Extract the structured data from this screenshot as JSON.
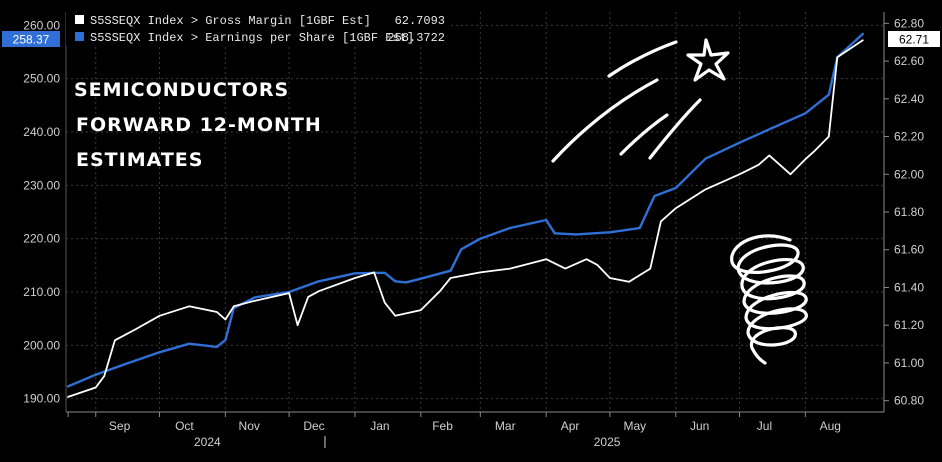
{
  "colors": {
    "background": "#000000",
    "gross_margin": "#ffffff",
    "eps": "#2f6fd6",
    "grid": "#3a3a3a",
    "axis_text": "#cfcfcf"
  },
  "annotation": {
    "lines": [
      "SEMICONDUCTORS",
      "FORWARD 12-MONTH",
      "ESTIMATES"
    ]
  },
  "chart_data": {
    "type": "line",
    "legend": [
      {
        "label": "S5SSEQX Index > Gross Margin [1GBF Est]",
        "value": "62.7093",
        "color": "#ffffff"
      },
      {
        "label": "S5SSEQX Index > Earnings per Share [1GBF Est]",
        "value": "258.3722",
        "color": "#2f6fd6"
      }
    ],
    "y_left": {
      "ticks": [
        "190.00",
        "200.00",
        "210.00",
        "220.00",
        "230.00",
        "240.00",
        "250.00",
        "260.00"
      ],
      "range": [
        187.5,
        262.5
      ],
      "last_label": "258.37"
    },
    "y_right": {
      "ticks": [
        "60.80",
        "61.00",
        "61.20",
        "61.40",
        "61.60",
        "61.80",
        "62.00",
        "62.20",
        "62.40",
        "62.60",
        "62.80"
      ],
      "range": [
        60.74,
        62.86
      ],
      "last_label": "62.71"
    },
    "x_months": [
      "Sep",
      "Oct",
      "Nov",
      "Dec",
      "Jan",
      "Feb",
      "Mar",
      "Apr",
      "May",
      "Jun",
      "Jul",
      "Aug"
    ],
    "x_years": [
      "2024",
      "2025"
    ],
    "grid": true,
    "series": [
      {
        "name": "S5SSEQX Index > Earnings per Share [1GBF Est]",
        "axis": "left",
        "x": [
          "2024-08-19",
          "2024-09-01",
          "2024-09-15",
          "2024-10-01",
          "2024-10-15",
          "2024-10-28",
          "2024-11-01",
          "2024-11-05",
          "2024-11-15",
          "2024-12-01",
          "2024-12-15",
          "2025-01-01",
          "2025-01-15",
          "2025-01-20",
          "2025-01-25",
          "2025-02-01",
          "2025-02-15",
          "2025-02-20",
          "2025-03-01",
          "2025-03-15",
          "2025-04-01",
          "2025-04-05",
          "2025-04-15",
          "2025-05-01",
          "2025-05-15",
          "2025-05-22",
          "2025-06-01",
          "2025-06-15",
          "2025-07-01",
          "2025-07-15",
          "2025-08-01",
          "2025-08-12",
          "2025-08-16",
          "2025-08-28"
        ],
        "values": [
          192.3,
          194.5,
          196.5,
          198.7,
          200.3,
          199.7,
          201.0,
          207.0,
          209.0,
          210.0,
          212.0,
          213.5,
          213.6,
          212.0,
          211.8,
          212.5,
          214.0,
          218.0,
          220.0,
          222.0,
          223.5,
          221.0,
          220.8,
          221.2,
          222.0,
          228.0,
          229.5,
          235.0,
          238.0,
          240.5,
          243.5,
          247.0,
          254.0,
          258.4
        ]
      },
      {
        "name": "S5SSEQX Index > Gross Margin [1GBF Est]",
        "axis": "right",
        "x": [
          "2024-08-19",
          "2024-09-01",
          "2024-09-05",
          "2024-09-10",
          "2024-09-20",
          "2024-10-01",
          "2024-10-15",
          "2024-10-28",
          "2024-11-01",
          "2024-11-05",
          "2024-11-15",
          "2024-12-01",
          "2024-12-05",
          "2024-12-10",
          "2024-12-15",
          "2025-01-01",
          "2025-01-10",
          "2025-01-15",
          "2025-01-20",
          "2025-02-01",
          "2025-02-10",
          "2025-02-15",
          "2025-03-01",
          "2025-03-15",
          "2025-04-01",
          "2025-04-10",
          "2025-04-20",
          "2025-04-25",
          "2025-05-01",
          "2025-05-10",
          "2025-05-20",
          "2025-05-25",
          "2025-06-01",
          "2025-06-15",
          "2025-07-01",
          "2025-07-10",
          "2025-07-15",
          "2025-07-25",
          "2025-08-01",
          "2025-08-05",
          "2025-08-12",
          "2025-08-16",
          "2025-08-28"
        ],
        "values": [
          60.82,
          60.87,
          60.93,
          61.12,
          61.18,
          61.25,
          61.3,
          61.27,
          61.23,
          61.3,
          61.33,
          61.37,
          61.2,
          61.35,
          61.38,
          61.45,
          61.48,
          61.32,
          61.25,
          61.28,
          61.38,
          61.45,
          61.48,
          61.5,
          61.55,
          61.5,
          61.55,
          61.52,
          61.45,
          61.43,
          61.5,
          61.75,
          61.82,
          61.92,
          62.0,
          62.05,
          62.1,
          62.0,
          62.08,
          62.12,
          62.2,
          62.62,
          62.71
        ]
      }
    ]
  }
}
